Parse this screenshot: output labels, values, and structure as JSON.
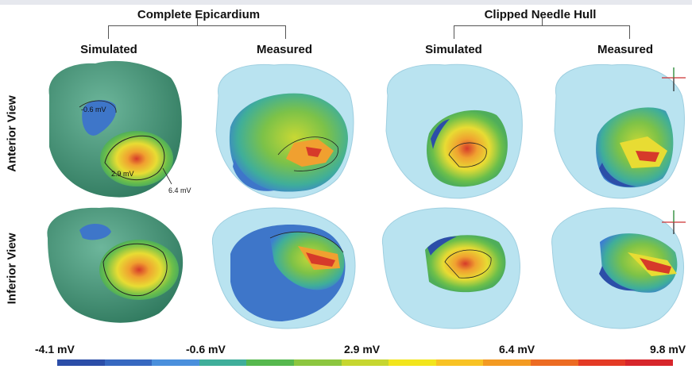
{
  "groups": {
    "complete": "Complete Epicardium",
    "clipped": "Clipped Needle Hull"
  },
  "columns": {
    "c1": "Simulated",
    "c2": "Measured",
    "c3": "Simulated",
    "c4": "Measured"
  },
  "rows": {
    "anterior": "Anterior View",
    "inferior": "Inferior View"
  },
  "annotations": {
    "a1": "-0.6 mV",
    "a2": "2.9 mV",
    "a3": "6.4 mV"
  },
  "colorbar": {
    "labels": [
      "-4.1 mV",
      "-0.6 mV",
      "2.9 mV",
      "6.4 mV",
      "9.8 mV"
    ],
    "colors": [
      "#2c4ea8",
      "#3768c0",
      "#4a8fdc",
      "#3fae9a",
      "#56b84e",
      "#8cc63f",
      "#c6d630",
      "#f2e51c",
      "#f8c224",
      "#f39a22",
      "#ec6b23",
      "#e43a25",
      "#d7262b"
    ]
  },
  "palette": {
    "hull": "#b9e3f0",
    "epicardium": "#3c9e7a",
    "blue": "#3e76c9",
    "green": "#6cbf4a",
    "yellow": "#e8dc33",
    "orange": "#f0a030",
    "red": "#d63a2a"
  }
}
